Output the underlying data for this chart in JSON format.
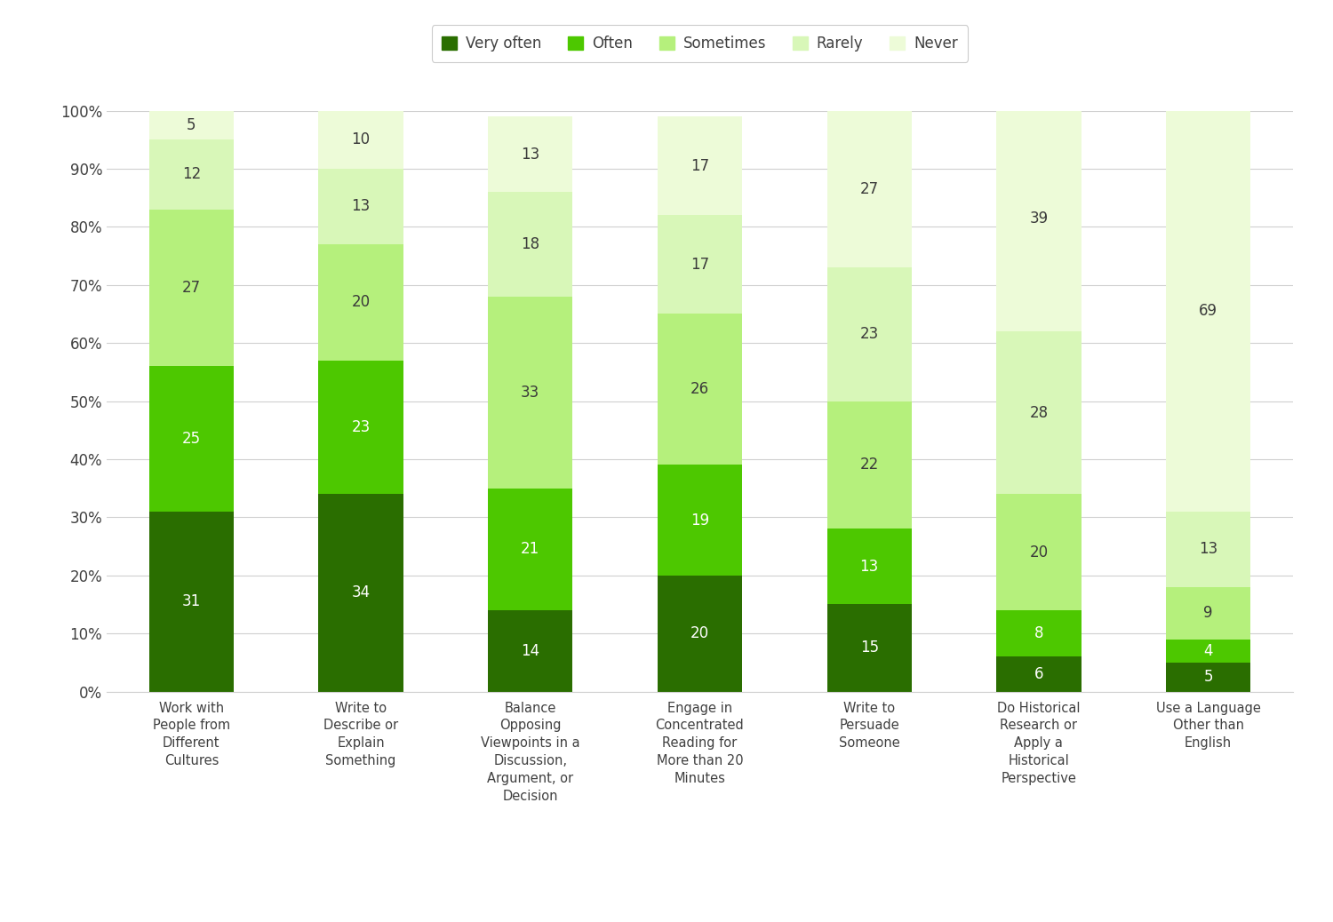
{
  "categories": [
    "Work with\nPeople from\nDifferent\nCultures",
    "Write to\nDescribe or\nExplain\nSomething",
    "Balance\nOpposing\nViewpoints in a\nDiscussion,\nArgument, or\nDecision",
    "Engage in\nConcentrated\nReading for\nMore than 20\nMinutes",
    "Write to\nPersuade\nSomeone",
    "Do Historical\nResearch or\nApply a\nHistorical\nPerspective",
    "Use a Language\nOther than\nEnglish"
  ],
  "series": {
    "Very often": [
      31,
      34,
      14,
      20,
      15,
      6,
      5
    ],
    "Often": [
      25,
      23,
      21,
      19,
      13,
      8,
      4
    ],
    "Sometimes": [
      27,
      20,
      33,
      26,
      22,
      20,
      9
    ],
    "Rarely": [
      12,
      13,
      18,
      17,
      23,
      28,
      13
    ],
    "Never": [
      5,
      10,
      13,
      17,
      27,
      39,
      69
    ]
  },
  "colors": {
    "Very often": "#2a6e00",
    "Often": "#4dc800",
    "Sometimes": "#b5f07c",
    "Rarely": "#d8f7b8",
    "Never": "#edfbd8"
  },
  "legend_order": [
    "Very often",
    "Often",
    "Sometimes",
    "Rarely",
    "Never"
  ],
  "ylim": [
    0,
    100
  ],
  "yticks": [
    0,
    10,
    20,
    30,
    40,
    50,
    60,
    70,
    80,
    90,
    100
  ],
  "yticklabels": [
    "0%",
    "10%",
    "20%",
    "30%",
    "40%",
    "50%",
    "60%",
    "70%",
    "80%",
    "90%",
    "100%"
  ],
  "bar_width": 0.5,
  "text_color_white": "#ffffff",
  "text_color_dark": "#3a3a3a",
  "background_color": "#ffffff",
  "grid_color": "#d0d0d0",
  "axis_label_color": "#404040",
  "label_fontsize": 10.5,
  "tick_fontsize": 12,
  "legend_fontsize": 12,
  "value_fontsize": 12
}
